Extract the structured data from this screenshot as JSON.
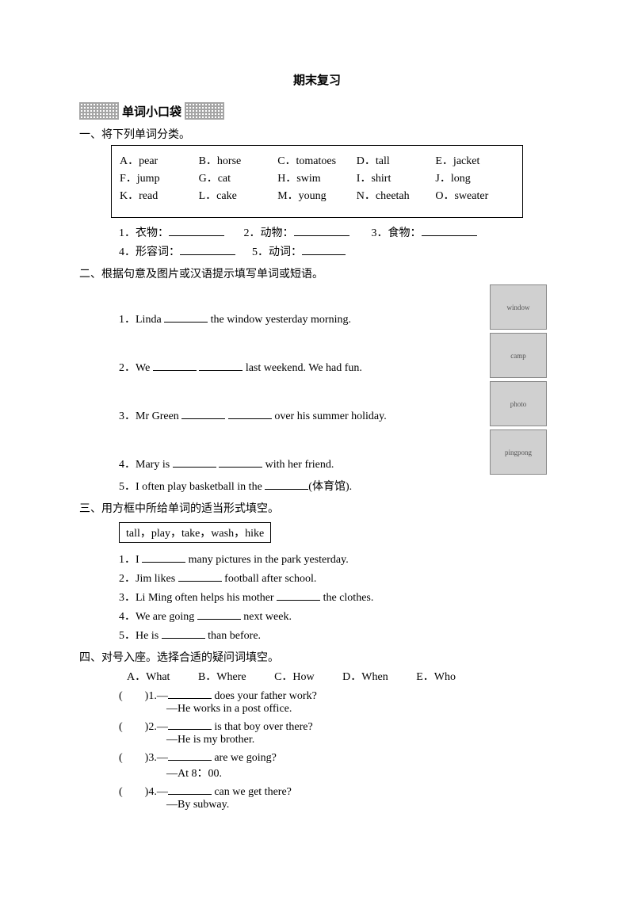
{
  "title": "期末复习",
  "section_header": "单词小口袋",
  "s1": {
    "heading": "一、将下列单词分类。",
    "words": {
      "r1": {
        "a": "A．pear",
        "b": "B．horse",
        "c": "C．tomatoes",
        "d": "D．tall",
        "e": "E．jacket"
      },
      "r2": {
        "a": "F．jump",
        "b": "G．cat",
        "c": "H．swim",
        "d": "I．shirt",
        "e": "J．long"
      },
      "r3": {
        "a": "K．read",
        "b": "L．cake",
        "c": "M．young",
        "d": "N．cheetah",
        "e": "O．sweater"
      }
    },
    "cats": {
      "c1": "1．衣物：",
      "c2": "2．动物：",
      "c3": "3．食物：",
      "c4": "4．形容词：",
      "c5": "5．动词："
    }
  },
  "s2": {
    "heading": "二、根据句意及图片或汉语提示填写单词或短语。",
    "q1a": "1．Linda ",
    "q1b": " the window yesterday morning.",
    "q2a": "2．We ",
    "q2b": " last weekend. We had fun.",
    "q3a": "3．Mr Green ",
    "q3b": " over his summer holiday.",
    "q4a": "4．Mary is ",
    "q4b": " with her friend.",
    "q5a": "5．I often play basketball in the ",
    "q5b": "(体育馆).",
    "imgs": {
      "i1": "window",
      "i2": "camp",
      "i3": "photo",
      "i4": "pingpong"
    }
  },
  "s3": {
    "heading": "三、用方框中所给单词的适当形式填空。",
    "box": "tall，play，take，wash，hike",
    "q1a": "1．I ",
    "q1b": " many pictures in the park yesterday.",
    "q2a": "2．Jim likes ",
    "q2b": " football after school.",
    "q3a": "3．Li Ming often helps his mother ",
    "q3b": " the clothes.",
    "q4a": "4．We are going ",
    "q4b": " next week.",
    "q5a": "5．He is ",
    "q5b": " than before."
  },
  "s4": {
    "heading": "四、对号入座。选择合适的疑问词填空。",
    "opts": {
      "a": "A．What",
      "b": "B．Where",
      "c": "C．How",
      "d": "D．When",
      "e": "E．Who"
    },
    "q1a": "(　　)1.—",
    "q1b": " does your father work?",
    "a1": "—He works in a post office.",
    "q2a": "(　　)2.—",
    "q2b": " is that boy over there?",
    "a2": "—He is my brother.",
    "q3a": "(　　)3.—",
    "q3b": " are we going?",
    "a3": "—At 8：00.",
    "q4a": "(　　)4.—",
    "q4b": " can we get there?",
    "a4": "—By subway."
  }
}
